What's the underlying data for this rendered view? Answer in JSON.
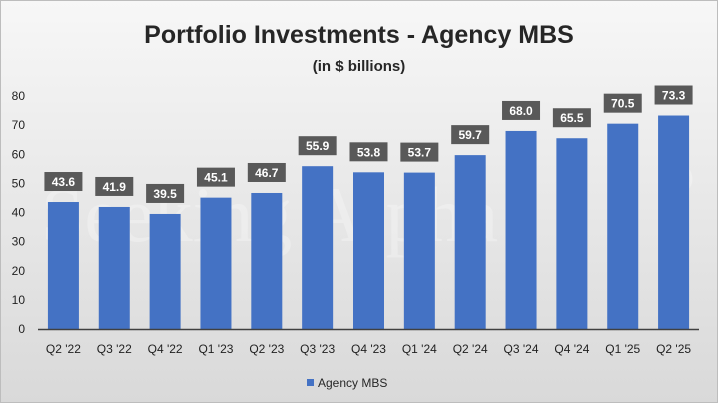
{
  "chart_data": {
    "type": "bar",
    "title": "Portfolio Investments - Agency MBS",
    "subtitle": "(in $ billions)",
    "xlabel": "",
    "ylabel": "",
    "ylim": [
      0,
      80
    ],
    "yticks": [
      0,
      10,
      20,
      30,
      40,
      50,
      60,
      70,
      80
    ],
    "grid": false,
    "legend_position": "bottom",
    "categories": [
      "Q2 '22",
      "Q3 '22",
      "Q4 '22",
      "Q1 '23",
      "Q2 '23",
      "Q3 '23",
      "Q4 '23",
      "Q1 '24",
      "Q2 '24",
      "Q3 '24",
      "Q4 '24",
      "Q1 '25",
      "Q2 '25"
    ],
    "series": [
      {
        "name": "Agency MBS",
        "values": [
          43.6,
          41.9,
          39.5,
          45.1,
          46.7,
          55.9,
          53.8,
          53.7,
          59.7,
          68.0,
          65.5,
          70.5,
          73.3
        ]
      }
    ],
    "data_labels": [
      "43.6",
      "41.9",
      "39.5",
      "45.1",
      "46.7",
      "55.9",
      "53.8",
      "53.7",
      "59.7",
      "68.0",
      "65.5",
      "70.5",
      "73.3"
    ],
    "colors": {
      "bar": "#4472c4",
      "label_box": "#595959",
      "axis": "#404040"
    },
    "watermark": "Seeking Alpha",
    "watermark_icon": "alpha-circle-icon"
  }
}
